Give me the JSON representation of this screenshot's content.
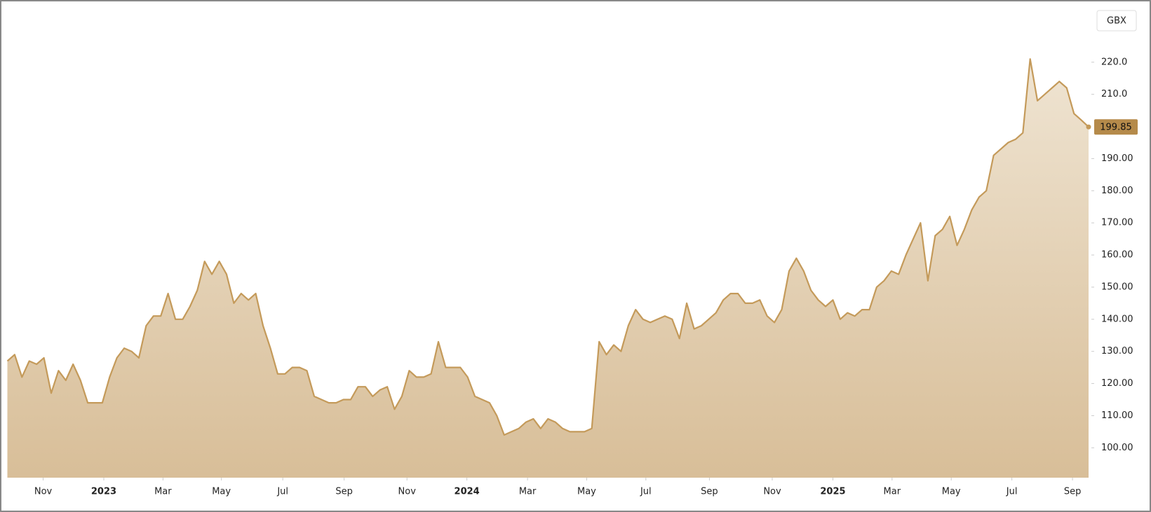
{
  "chart_data": {
    "type": "area",
    "currency": "GBX",
    "color": "#c49a5a",
    "values": [
      127,
      129,
      122,
      127,
      126,
      128,
      117,
      124,
      121,
      126,
      121,
      114,
      114,
      114,
      122,
      128,
      131,
      130,
      128,
      138,
      141,
      141,
      148,
      140,
      140,
      144,
      149,
      158,
      154,
      158,
      154,
      145,
      148,
      146,
      148,
      138,
      131,
      123,
      123,
      125,
      125,
      124,
      116,
      115,
      114,
      114,
      115,
      115,
      119,
      119,
      116,
      118,
      119,
      112,
      116,
      124,
      122,
      122,
      123,
      133,
      125,
      125,
      125,
      122,
      116,
      115,
      114,
      110,
      104,
      105,
      106,
      108,
      109,
      106,
      109,
      108,
      106,
      105,
      105,
      105,
      106,
      133,
      129,
      132,
      130,
      138,
      143,
      140,
      139,
      140,
      141,
      140,
      134,
      145,
      137,
      138,
      140,
      142,
      146,
      148,
      148,
      145,
      145,
      146,
      141,
      139,
      143,
      155,
      159,
      155,
      149,
      146,
      144,
      146,
      140,
      142,
      141,
      143,
      143,
      150,
      152,
      155,
      154,
      160,
      165,
      170,
      152,
      166,
      168,
      172,
      163,
      168,
      174,
      178,
      180,
      191,
      193,
      195,
      196,
      198,
      221,
      208,
      210,
      212,
      214,
      212,
      204,
      202,
      199.85
    ],
    "xlim": [
      0,
      148
    ],
    "xticks": [
      {
        "value": 4.9,
        "label": "Nov"
      },
      {
        "value": 13.2,
        "label": "2023"
      },
      {
        "value": 21.3,
        "label": "Mar"
      },
      {
        "value": 29.3,
        "label": "May"
      },
      {
        "value": 37.7,
        "label": "Jul"
      },
      {
        "value": 46.1,
        "label": "Sep"
      },
      {
        "value": 54.7,
        "label": "Nov"
      },
      {
        "value": 62.9,
        "label": "2024"
      },
      {
        "value": 71.2,
        "label": "Mar"
      },
      {
        "value": 79.3,
        "label": "May"
      },
      {
        "value": 87.4,
        "label": "Jul"
      },
      {
        "value": 96.1,
        "label": "Sep"
      },
      {
        "value": 104.7,
        "label": "Nov"
      },
      {
        "value": 113,
        "label": "2025"
      },
      {
        "value": 121.1,
        "label": "Mar"
      },
      {
        "value": 129.2,
        "label": "May"
      },
      {
        "value": 137.5,
        "label": "Jul"
      },
      {
        "value": 145.8,
        "label": "Sep"
      }
    ],
    "ylim": [
      90.7,
      238.7
    ],
    "yticks": [
      {
        "value": 100,
        "label": "100.00"
      },
      {
        "value": 110,
        "label": "110.00"
      },
      {
        "value": 120,
        "label": "120.00"
      },
      {
        "value": 130,
        "label": "130.00"
      },
      {
        "value": 140,
        "label": "140.00"
      },
      {
        "value": 150,
        "label": "150.00"
      },
      {
        "value": 160,
        "label": "160.00"
      },
      {
        "value": 170,
        "label": "170.00"
      },
      {
        "value": 180,
        "label": "180.00"
      },
      {
        "value": 190,
        "label": "190.00"
      },
      {
        "value": 210,
        "label": "210.0"
      },
      {
        "value": 220,
        "label": "220.0"
      }
    ]
  }
}
